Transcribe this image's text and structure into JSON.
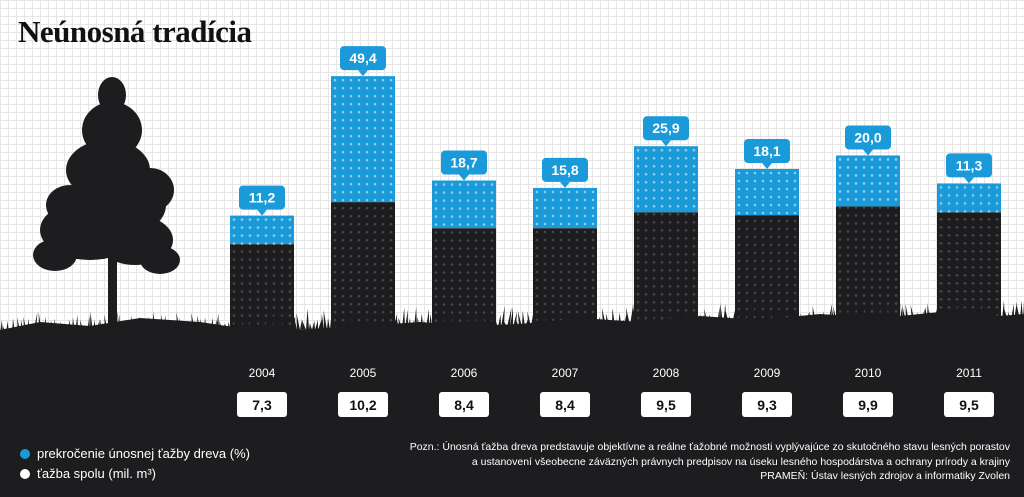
{
  "title": "Neúnosná tradícia",
  "colors": {
    "blue": "#1a9ad8",
    "dark": "#1d1d1f",
    "white": "#ffffff"
  },
  "chart_data": {
    "type": "bar",
    "stacked": true,
    "categories": [
      "2004",
      "2005",
      "2006",
      "2007",
      "2008",
      "2009",
      "2010",
      "2011"
    ],
    "series": [
      {
        "name": "ťažba spolu (mil. m³)",
        "values": [
          7.3,
          10.2,
          8.4,
          8.4,
          9.5,
          9.3,
          9.9,
          9.5
        ],
        "color": "#1d1d1f"
      },
      {
        "name": "prekročenie únosnej ťažby dreva (%)",
        "values": [
          11.2,
          49.4,
          18.7,
          15.8,
          25.9,
          18.1,
          20.0,
          11.3
        ],
        "color": "#1a9ad8"
      }
    ],
    "value_labels_top": [
      "11,2",
      "49,4",
      "18,7",
      "15,8",
      "25,9",
      "18,1",
      "20,0",
      "11,3"
    ],
    "value_labels_bottom": [
      "7,3",
      "10,2",
      "8,4",
      "8,4",
      "9,5",
      "9,3",
      "9,9",
      "9,5"
    ]
  },
  "legend": {
    "items": [
      {
        "label": "prekročenie únosnej ťažby dreva (%)",
        "color": "#1a9ad8"
      },
      {
        "label": "ťažba spolu (mil. m³)",
        "color": "#ffffff"
      }
    ]
  },
  "note": {
    "line1": "Pozn.: Únosná ťažba dreva predstavuje objektívne a reálne ťažobné možnosti vyplývajúce zo skutočného stavu lesných porastov",
    "line2": "a ustanovení všeobecne záväzných právnych predpisov na úseku lesného hospodárstva a ochrany prírody a krajiny",
    "source": "PRAMEŇ: Ústav lesných zdrojov a informatiky Zvolen"
  }
}
